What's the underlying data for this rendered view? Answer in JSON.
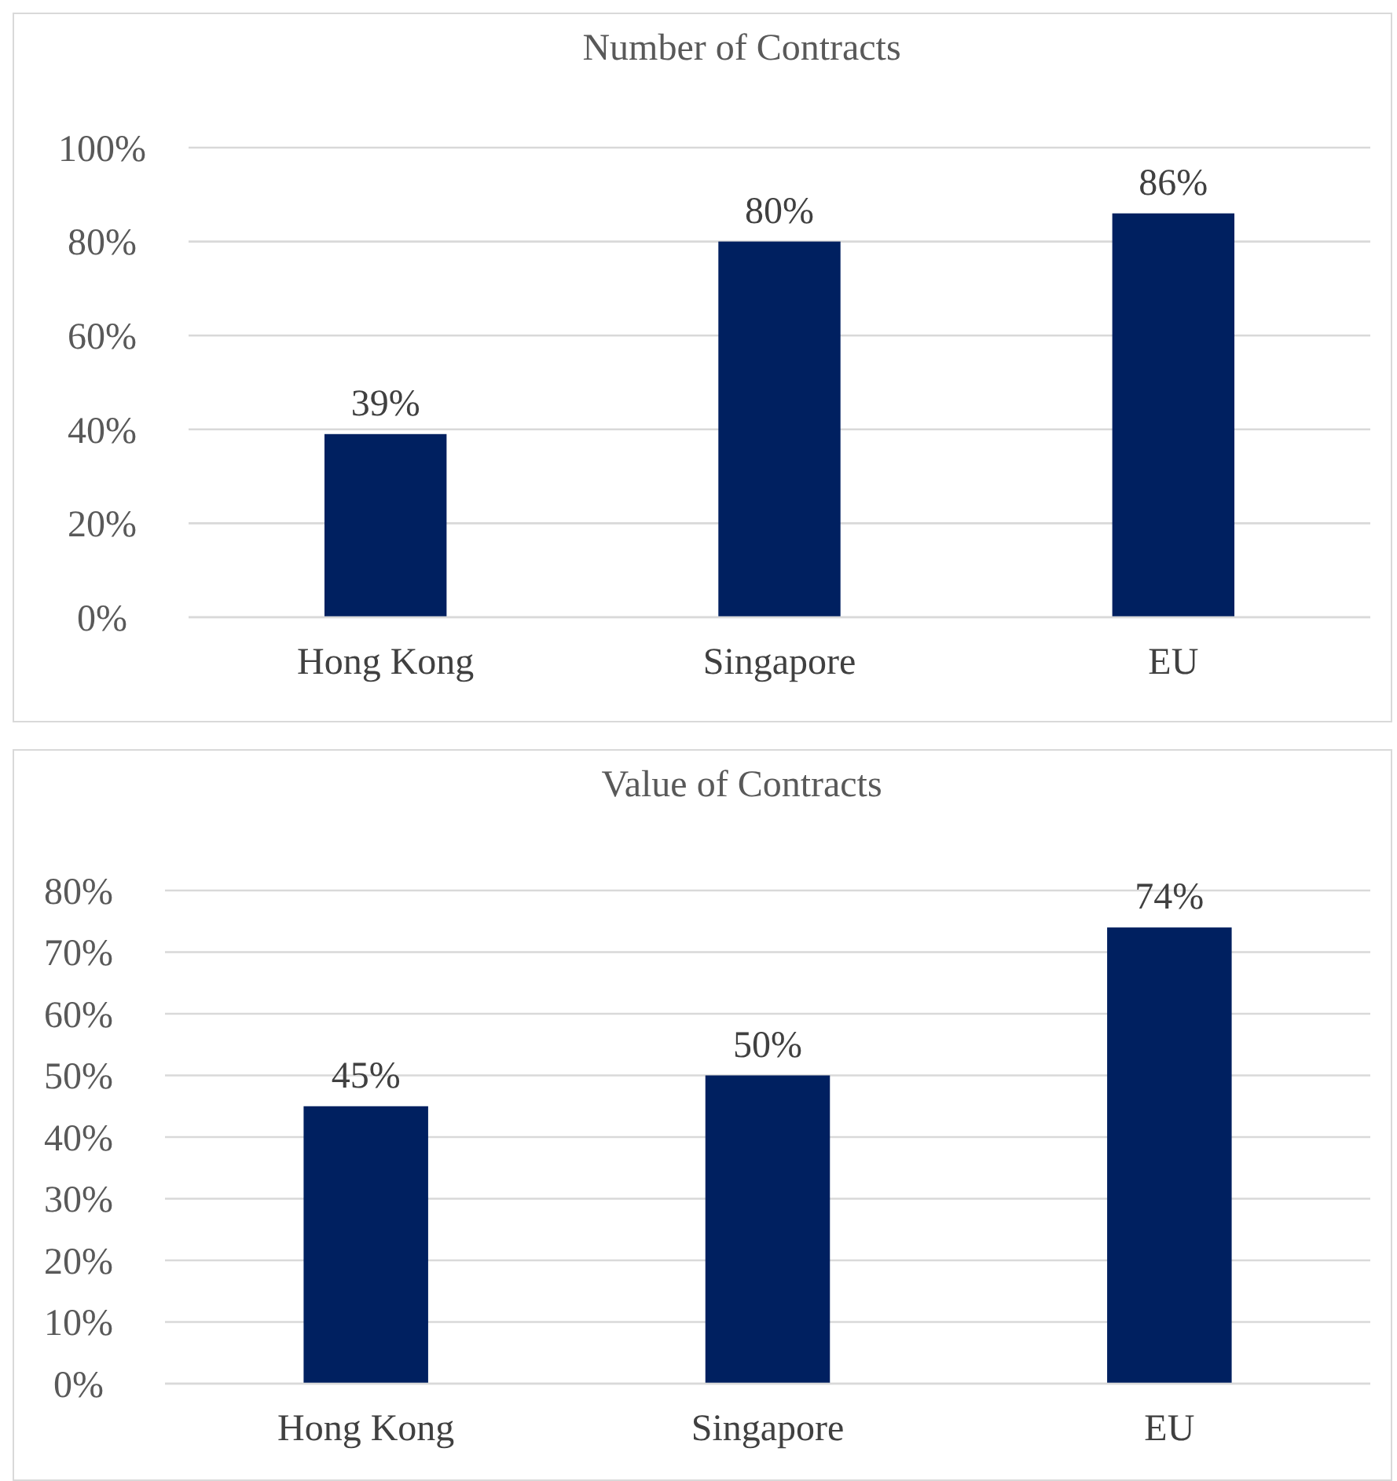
{
  "chart_data": [
    {
      "type": "bar",
      "title": "Number of Contracts",
      "categories": [
        "Hong Kong",
        "Singapore",
        "EU"
      ],
      "values": [
        39,
        80,
        86
      ],
      "value_labels": [
        "39%",
        "80%",
        "86%"
      ],
      "color": "#002060",
      "ylim": [
        0,
        100
      ],
      "yticks": [
        {
          "value": 0,
          "label": "0%"
        },
        {
          "value": 20,
          "label": "20%"
        },
        {
          "value": 40,
          "label": "40%"
        },
        {
          "value": 60,
          "label": "60%"
        },
        {
          "value": 80,
          "label": "80%"
        },
        {
          "value": 100,
          "label": "100%"
        }
      ],
      "grid": "y"
    },
    {
      "type": "bar",
      "title": "Value of Contracts",
      "categories": [
        "Hong Kong",
        "Singapore",
        "EU"
      ],
      "values": [
        45,
        50,
        74
      ],
      "value_labels": [
        "45%",
        "50%",
        "74%"
      ],
      "color": "#002060",
      "ylim": [
        0,
        80
      ],
      "yticks": [
        {
          "value": 0,
          "label": "0%"
        },
        {
          "value": 10,
          "label": "10%"
        },
        {
          "value": 20,
          "label": "20%"
        },
        {
          "value": 30,
          "label": "30%"
        },
        {
          "value": 40,
          "label": "40%"
        },
        {
          "value": 50,
          "label": "50%"
        },
        {
          "value": 60,
          "label": "60%"
        },
        {
          "value": 70,
          "label": "70%"
        },
        {
          "value": 80,
          "label": "80%"
        }
      ],
      "grid": "y"
    }
  ]
}
